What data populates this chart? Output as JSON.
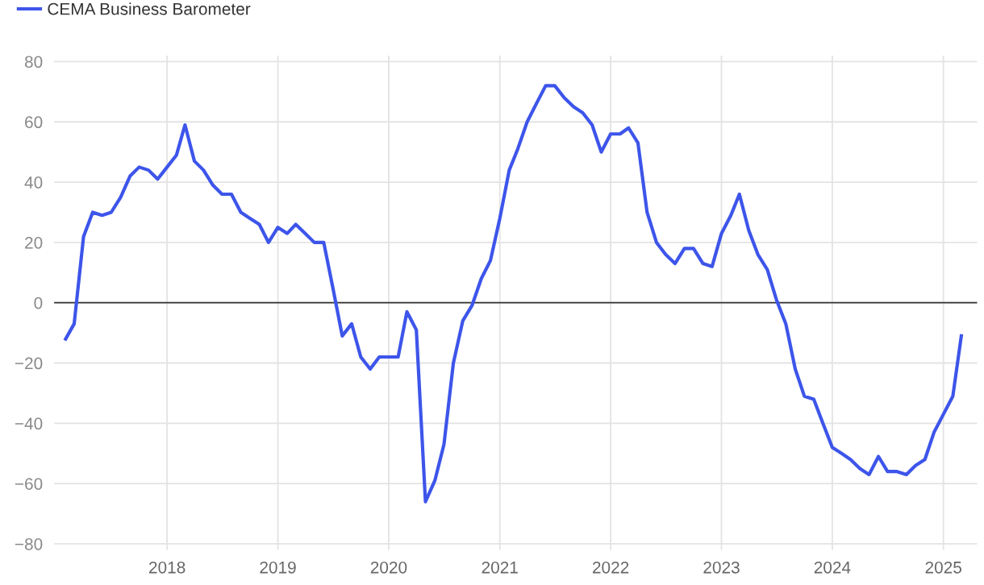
{
  "chart_data": {
    "type": "line",
    "legend": "top left",
    "grid": true,
    "marker": "none",
    "line_style": "solid",
    "x": [
      "2017-02",
      "2017-03",
      "2017-04",
      "2017-05",
      "2017-06",
      "2017-07",
      "2017-08",
      "2017-09",
      "2017-10",
      "2017-11",
      "2017-12",
      "2018-01",
      "2018-02",
      "2018-03",
      "2018-04",
      "2018-05",
      "2018-06",
      "2018-07",
      "2018-08",
      "2018-09",
      "2018-10",
      "2018-11",
      "2018-12",
      "2019-01",
      "2019-02",
      "2019-03",
      "2019-04",
      "2019-05",
      "2019-06",
      "2019-07",
      "2019-08",
      "2019-09",
      "2019-10",
      "2019-11",
      "2019-12",
      "2020-01",
      "2020-02",
      "2020-03",
      "2020-04",
      "2020-05",
      "2020-06",
      "2020-07",
      "2020-08",
      "2020-09",
      "2020-10",
      "2020-11",
      "2020-12",
      "2021-01",
      "2021-02",
      "2021-03",
      "2021-04",
      "2021-05",
      "2021-06",
      "2021-07",
      "2021-08",
      "2021-09",
      "2021-10",
      "2021-11",
      "2021-12",
      "2022-01",
      "2022-02",
      "2022-03",
      "2022-04",
      "2022-05",
      "2022-06",
      "2022-07",
      "2022-08",
      "2022-09",
      "2022-10",
      "2022-11",
      "2022-12",
      "2023-01",
      "2023-02",
      "2023-03",
      "2023-04",
      "2023-05",
      "2023-06",
      "2023-07",
      "2023-08",
      "2023-09",
      "2023-10",
      "2023-11",
      "2023-12",
      "2024-01",
      "2024-02",
      "2024-03",
      "2024-04",
      "2024-05",
      "2024-06",
      "2024-07",
      "2024-08",
      "2024-09",
      "2024-10",
      "2024-11",
      "2024-12",
      "2025-01",
      "2025-02",
      "2025-03"
    ],
    "series": [
      {
        "name": "CEMA Business Barometer",
        "color": "#3d55ea",
        "values": [
          -12,
          -7,
          22,
          30,
          29,
          30,
          35,
          42,
          45,
          44,
          41,
          45,
          49,
          59,
          47,
          44,
          39,
          36,
          36,
          30,
          28,
          26,
          20,
          25,
          23,
          26,
          23,
          20,
          20,
          5,
          -11,
          -7,
          -18,
          -22,
          -18,
          -18,
          -18,
          -3,
          -9,
          -66,
          -59,
          -47,
          -20,
          -6,
          -1,
          8,
          14,
          28,
          44,
          51,
          60,
          66,
          72,
          72,
          68,
          65,
          63,
          59,
          50,
          56,
          56,
          58,
          53,
          30,
          20,
          16,
          13,
          18,
          18,
          13,
          12,
          23,
          29,
          36,
          24,
          16,
          11,
          1,
          -7,
          -22,
          -31,
          -32,
          -40,
          -48,
          -50,
          -52,
          -55,
          -57,
          -51,
          -56,
          -56,
          -57,
          -54,
          -52,
          -43,
          -37,
          -31,
          -11
        ]
      }
    ],
    "xlim": [
      "2016-12-25",
      "2025-04-22"
    ],
    "xticks": [
      "2018",
      "2019",
      "2020",
      "2021",
      "2022",
      "2023",
      "2024",
      "2025"
    ],
    "ylim": [
      -82,
      82
    ],
    "yticks": [
      -80,
      -60,
      -40,
      -20,
      0,
      20,
      40,
      60,
      80
    ],
    "ref_lines": [
      {
        "axis": "y",
        "value": 0,
        "color": "#333333",
        "line_style": "solid"
      }
    ]
  }
}
